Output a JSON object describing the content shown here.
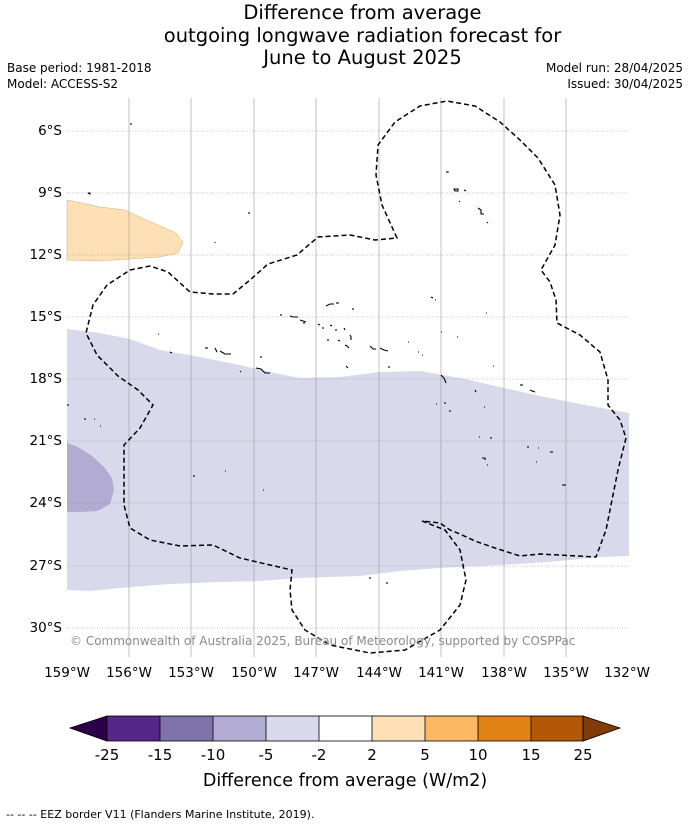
{
  "title_lines": [
    "Difference from average",
    "outgoing longwave radiation forecast for",
    "June to August 2025"
  ],
  "meta_left": [
    "Base period: 1981-2018",
    "Model: ACCESS-S2"
  ],
  "meta_right": [
    "Model run: 28/04/2025",
    "Issued: 30/04/2025"
  ],
  "copyright": "© Commonwealth of Australia 2025, Bureau of Meteorology, supported by COSPPac",
  "latitude_labels": [
    "6°S",
    "9°S",
    "12°S",
    "15°S",
    "18°S",
    "21°S",
    "24°S",
    "27°S",
    "30°S"
  ],
  "longitude_labels": [
    "159°W",
    "156°W",
    "153°W",
    "150°W",
    "147°W",
    "144°W",
    "141°W",
    "138°W",
    "135°W",
    "132°W"
  ],
  "colorbar": {
    "title": "Difference from average (W/m2)",
    "tick_labels": [
      "-25",
      "-15",
      "-10",
      "-5",
      "-2",
      "2",
      "5",
      "10",
      "15",
      "25"
    ],
    "below_color": "#2d004b",
    "above_color": "#7f3b08",
    "colors": [
      "#542788",
      "#8073ac",
      "#b2abd2",
      "#d8daeb",
      "#ffffff",
      "#fee0b6",
      "#fdb863",
      "#e08214",
      "#b35806"
    ]
  },
  "map_colors": {
    "weak_negative": "#d8daeb",
    "moderate_negative": "#b2abd2",
    "weak_positive": "#fee0b6"
  },
  "legend_footnote": "--  --  -- EEZ border V11 (Flanders Marine Institute, 2019)."
}
